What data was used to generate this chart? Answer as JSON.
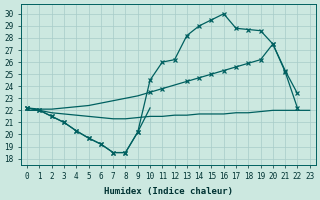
{
  "xlabel": "Humidex (Indice chaleur)",
  "bg_color": "#cce8e0",
  "grid_color": "#a8ccc8",
  "line_color": "#006060",
  "xlim": [
    -0.5,
    23.5
  ],
  "ylim": [
    17.5,
    30.8
  ],
  "yticks": [
    18,
    19,
    20,
    21,
    22,
    23,
    24,
    25,
    26,
    27,
    28,
    29,
    30
  ],
  "xticks": [
    0,
    1,
    2,
    3,
    4,
    5,
    6,
    7,
    8,
    9,
    10,
    11,
    12,
    13,
    14,
    15,
    16,
    17,
    18,
    19,
    20,
    21,
    22,
    23
  ],
  "flat_x": [
    0,
    1,
    2,
    3,
    4,
    5,
    6,
    7,
    8,
    9,
    10,
    11,
    12,
    13,
    14,
    15,
    16,
    17,
    18,
    19,
    20,
    21,
    22,
    23
  ],
  "flat_y": [
    22.0,
    22.0,
    21.8,
    21.7,
    21.6,
    21.5,
    21.4,
    21.3,
    21.3,
    21.4,
    21.5,
    21.5,
    21.6,
    21.6,
    21.7,
    21.7,
    21.7,
    21.8,
    21.8,
    21.9,
    22.0,
    22.0,
    22.0,
    22.0
  ],
  "dip_x": [
    0,
    1,
    2,
    3,
    4,
    5,
    6,
    7,
    8,
    9,
    10
  ],
  "dip_y": [
    22.2,
    22.0,
    21.5,
    21.0,
    20.3,
    19.7,
    19.2,
    18.5,
    18.5,
    20.2,
    22.2
  ],
  "diag_x": [
    0,
    1,
    2,
    3,
    4,
    5,
    6,
    7,
    8,
    9,
    10,
    11,
    12,
    13,
    14,
    15,
    16,
    17,
    18,
    19,
    20,
    21,
    22
  ],
  "diag_y": [
    22.2,
    22.1,
    22.1,
    22.2,
    22.3,
    22.4,
    22.6,
    22.8,
    23.0,
    23.2,
    23.5,
    23.8,
    24.1,
    24.4,
    24.7,
    25.0,
    25.3,
    25.6,
    25.9,
    26.2,
    27.5,
    25.2,
    22.2
  ],
  "peak_x": [
    0,
    1,
    2,
    3,
    4,
    5,
    6,
    7,
    8,
    9,
    10,
    11,
    12,
    13,
    14,
    15,
    16,
    17,
    18,
    19,
    20,
    21,
    22
  ],
  "peak_y": [
    22.2,
    22.0,
    21.5,
    21.0,
    20.3,
    19.7,
    19.2,
    18.5,
    18.5,
    20.2,
    24.5,
    26.0,
    26.2,
    28.2,
    29.0,
    29.5,
    30.0,
    28.8,
    28.7,
    28.6,
    27.5,
    25.3,
    23.4
  ],
  "dip_mx": [
    0,
    1,
    2,
    3,
    4,
    5,
    6,
    7,
    8,
    9
  ],
  "dip_my": [
    22.2,
    22.0,
    21.5,
    21.0,
    20.3,
    19.7,
    19.2,
    18.5,
    18.5,
    20.2
  ],
  "diag_mx": [
    0,
    10,
    11,
    13,
    14,
    15,
    16,
    17,
    18,
    19,
    20,
    21,
    22
  ],
  "diag_my": [
    22.2,
    23.5,
    23.8,
    24.4,
    24.7,
    25.0,
    25.3,
    25.6,
    25.9,
    26.2,
    27.5,
    25.2,
    22.2
  ],
  "peak_mx": [
    0,
    1,
    2,
    3,
    4,
    5,
    6,
    7,
    8,
    9,
    10,
    11,
    12,
    13,
    14,
    15,
    16,
    17,
    18,
    19,
    20,
    21,
    22
  ],
  "peak_my": [
    22.2,
    22.0,
    21.5,
    21.0,
    20.3,
    19.7,
    19.2,
    18.5,
    18.5,
    20.2,
    24.5,
    26.0,
    26.2,
    28.2,
    29.0,
    29.5,
    30.0,
    28.8,
    28.7,
    28.6,
    27.5,
    25.3,
    23.4
  ]
}
